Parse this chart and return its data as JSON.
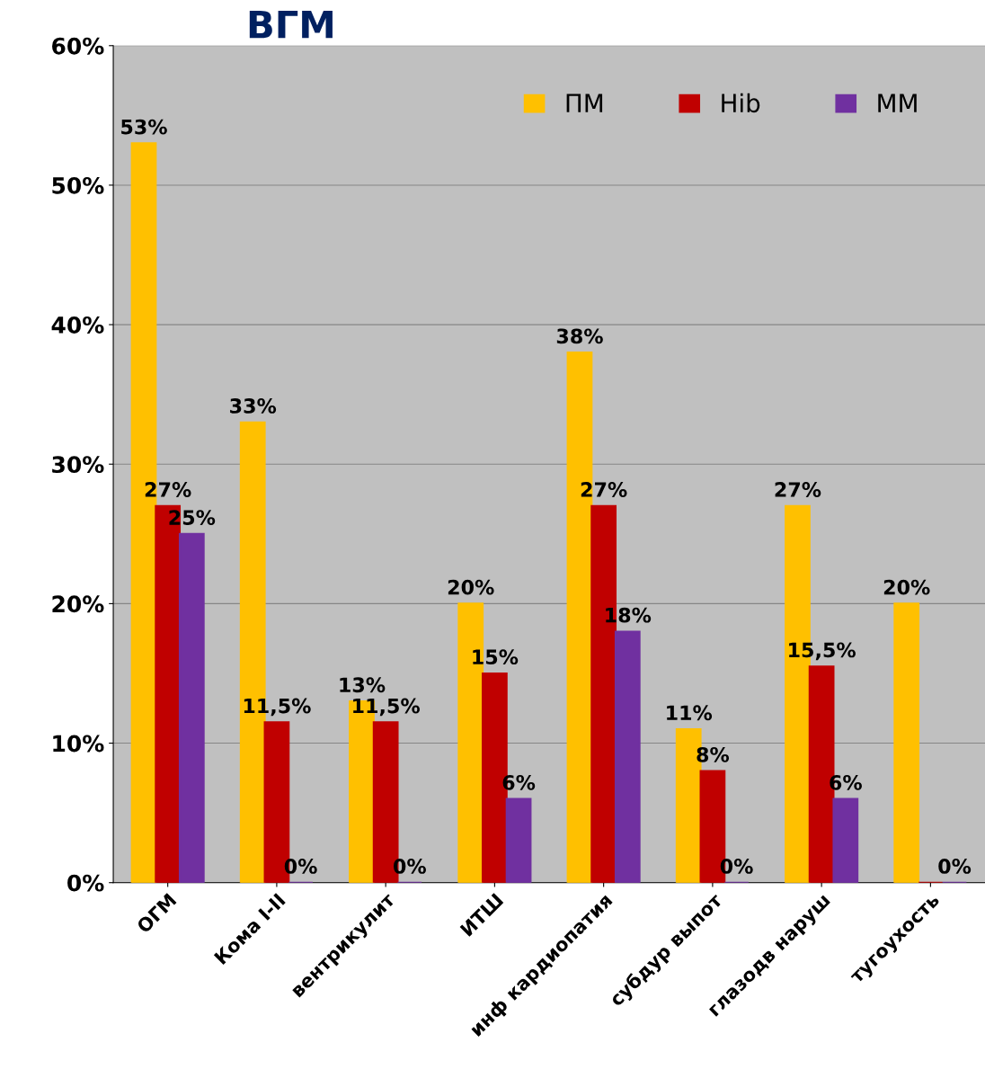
{
  "chart_data": {
    "type": "bar",
    "title": "ВГМ",
    "categories": [
      "ОГМ",
      "Кома I-II",
      "вентрикулит",
      "ИТШ",
      "инф кардиопатия",
      "субдур выпот",
      "глазодв наруш",
      "тугоухость"
    ],
    "series": [
      {
        "name": "ПМ",
        "color": "#ffc000",
        "values": [
          53,
          33,
          13,
          20,
          38,
          11,
          27,
          20
        ],
        "value_labels": [
          "53%",
          "33%",
          "13%",
          "20%",
          "38%",
          "11%",
          "27%",
          "20%"
        ]
      },
      {
        "name": "Hib",
        "color": "#c00000",
        "values": [
          27,
          11.5,
          11.5,
          15,
          27,
          8,
          15.5,
          0
        ],
        "value_labels": [
          "27%",
          "11,5%",
          "11,5%",
          "15%",
          "27%",
          "8%",
          "15,5%",
          null
        ]
      },
      {
        "name": "ММ",
        "color": "#7030a0",
        "values": [
          25,
          0,
          0,
          6,
          18,
          0,
          6,
          0
        ],
        "value_labels": [
          "25%",
          "0%",
          "0%",
          "6%",
          "18%",
          "0%",
          "6%",
          "0%"
        ]
      }
    ],
    "ylim": [
      0,
      60
    ],
    "yticks": [
      {
        "value": 0,
        "label": "0%"
      },
      {
        "value": 10,
        "label": "10%"
      },
      {
        "value": 20,
        "label": "20%"
      },
      {
        "value": 30,
        "label": "30%"
      },
      {
        "value": 40,
        "label": "40%"
      },
      {
        "value": 50,
        "label": "50%"
      },
      {
        "value": 60,
        "label": "60%"
      }
    ],
    "grid": "y",
    "legend": "top right"
  }
}
